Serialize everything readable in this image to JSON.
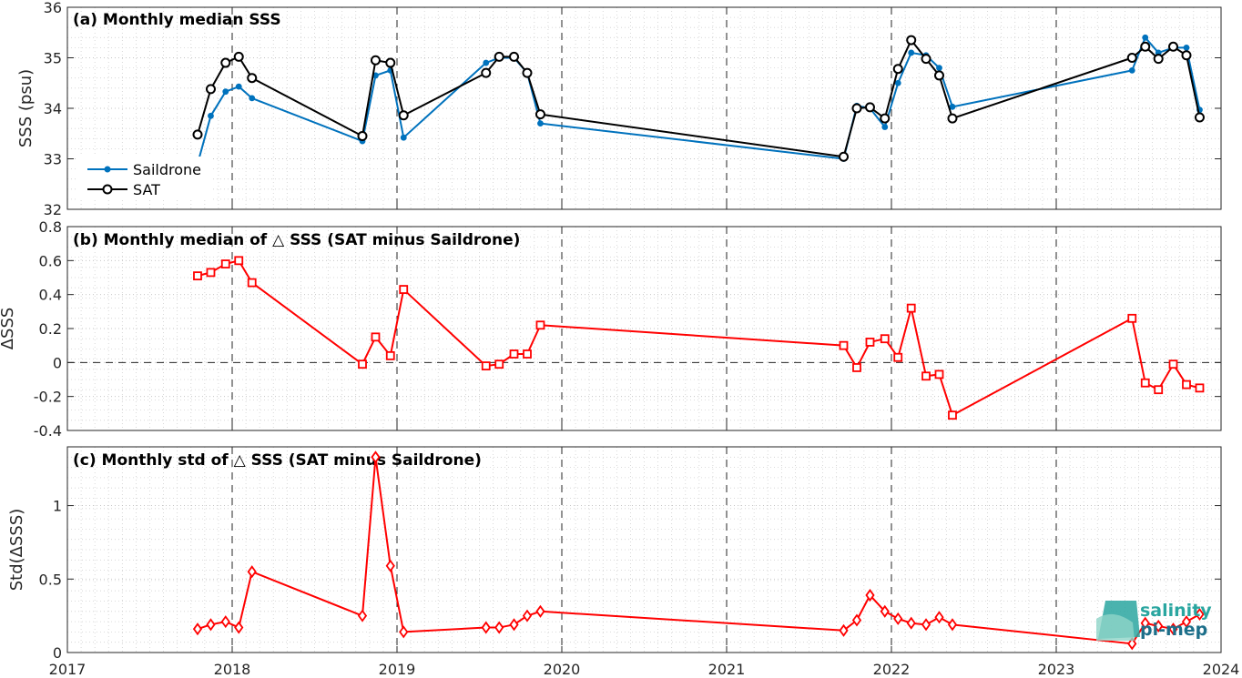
{
  "colors": {
    "saildrone": "#0072BD",
    "sat": "#000000",
    "delta": "#FF0000",
    "logo_light": "#2aa6a0",
    "logo_dark": "#1d6f8a"
  },
  "x_axis": {
    "range": [
      2017,
      2024
    ],
    "tick_labels": [
      "2017",
      "2018",
      "2019",
      "2020",
      "2021",
      "2022",
      "2023",
      "2024"
    ],
    "major_dashed_lines_at": [
      2018,
      2019,
      2020,
      2021,
      2022,
      2023
    ]
  },
  "logo": {
    "line1": "salinity",
    "line2": "pi-mep"
  },
  "chart_data": [
    {
      "type": "line",
      "title": "(a) Monthly median SSS",
      "ylabel": "SSS (psu)",
      "ylim": [
        32,
        36
      ],
      "yticks": [
        "32",
        "33",
        "34",
        "35",
        "36"
      ],
      "grid": true,
      "legend": {
        "placement": "bottom-left",
        "entries": [
          "Saildrone",
          "SAT"
        ]
      },
      "series": [
        {
          "name": "Saildrone",
          "marker": "dot",
          "x": [
            2017.79,
            2017.87,
            2017.96,
            2018.04,
            2018.12,
            2018.79,
            2018.87,
            2018.96,
            2019.04,
            2019.54,
            2019.62,
            2019.71,
            2019.79,
            2019.87,
            2021.71,
            2021.79,
            2021.87,
            2021.96,
            2022.04,
            2022.12,
            2022.21,
            2022.29,
            2022.37,
            2023.46,
            2023.54,
            2023.62,
            2023.71,
            2023.79,
            2023.87
          ],
          "values": [
            32.9,
            33.85,
            34.33,
            34.43,
            34.2,
            33.35,
            34.65,
            34.75,
            33.42,
            34.9,
            35.0,
            35.0,
            34.7,
            33.7,
            33.0,
            34.05,
            34.0,
            33.63,
            34.5,
            35.1,
            35.05,
            34.8,
            34.03,
            34.75,
            35.4,
            35.1,
            35.2,
            35.2,
            33.97
          ]
        },
        {
          "name": "SAT",
          "marker": "circle",
          "x": [
            2017.79,
            2017.87,
            2017.96,
            2018.04,
            2018.12,
            2018.79,
            2018.87,
            2018.96,
            2019.04,
            2019.54,
            2019.62,
            2019.71,
            2019.79,
            2019.87,
            2021.71,
            2021.79,
            2021.87,
            2021.96,
            2022.04,
            2022.12,
            2022.21,
            2022.29,
            2022.37,
            2023.46,
            2023.54,
            2023.62,
            2023.71,
            2023.79,
            2023.87
          ],
          "values": [
            33.48,
            34.38,
            34.9,
            35.02,
            34.6,
            33.45,
            34.95,
            34.9,
            33.86,
            34.7,
            35.02,
            35.02,
            34.7,
            33.88,
            33.04,
            34.0,
            34.02,
            33.8,
            34.78,
            35.35,
            34.98,
            34.65,
            33.8,
            35.0,
            35.22,
            34.98,
            35.22,
            35.05,
            33.82
          ]
        }
      ]
    },
    {
      "type": "line",
      "title": "(b) Monthly median of △ SSS (SAT minus Saildrone)",
      "ylabel": "ΔSSS",
      "ylim": [
        -0.4,
        0.8
      ],
      "yticks": [
        "-0.4",
        "-0.2",
        "0",
        "0.2",
        "0.4",
        "0.6",
        "0.8"
      ],
      "zero_line": "dashed",
      "grid": true,
      "series": [
        {
          "marker": "square",
          "x": [
            2017.79,
            2017.87,
            2017.96,
            2018.04,
            2018.12,
            2018.79,
            2018.87,
            2018.96,
            2019.04,
            2019.54,
            2019.62,
            2019.71,
            2019.79,
            2019.87,
            2021.71,
            2021.79,
            2021.87,
            2021.96,
            2022.04,
            2022.12,
            2022.21,
            2022.29,
            2022.37,
            2023.46,
            2023.54,
            2023.62,
            2023.71,
            2023.79,
            2023.87
          ],
          "values": [
            0.51,
            0.53,
            0.58,
            0.6,
            0.47,
            -0.01,
            0.15,
            0.04,
            0.43,
            -0.02,
            -0.01,
            0.05,
            0.05,
            0.22,
            0.1,
            -0.03,
            0.12,
            0.14,
            0.03,
            0.32,
            -0.08,
            -0.07,
            -0.31,
            0.26,
            -0.12,
            -0.16,
            -0.01,
            -0.13,
            -0.15
          ]
        }
      ]
    },
    {
      "type": "line",
      "title": "(c) Monthly std of △ SSS (SAT minus Saildrone)",
      "ylabel": "Std(ΔSSS)",
      "ylim": [
        0,
        1.4
      ],
      "yticks": [
        "0",
        "0.5",
        "1"
      ],
      "grid": true,
      "series": [
        {
          "marker": "diamond",
          "x": [
            2017.79,
            2017.87,
            2017.96,
            2018.04,
            2018.12,
            2018.79,
            2018.87,
            2018.96,
            2019.04,
            2019.54,
            2019.62,
            2019.71,
            2019.79,
            2019.87,
            2021.71,
            2021.79,
            2021.87,
            2021.96,
            2022.04,
            2022.12,
            2022.21,
            2022.29,
            2022.37,
            2023.46,
            2023.54,
            2023.62,
            2023.71,
            2023.79,
            2023.87
          ],
          "values": [
            0.16,
            0.19,
            0.21,
            0.17,
            0.55,
            0.25,
            1.33,
            0.59,
            0.14,
            0.17,
            0.17,
            0.19,
            0.25,
            0.28,
            0.15,
            0.22,
            0.39,
            0.28,
            0.23,
            0.2,
            0.19,
            0.24,
            0.19,
            0.06,
            0.2,
            0.18,
            0.16,
            0.21,
            0.26
          ]
        }
      ]
    }
  ]
}
